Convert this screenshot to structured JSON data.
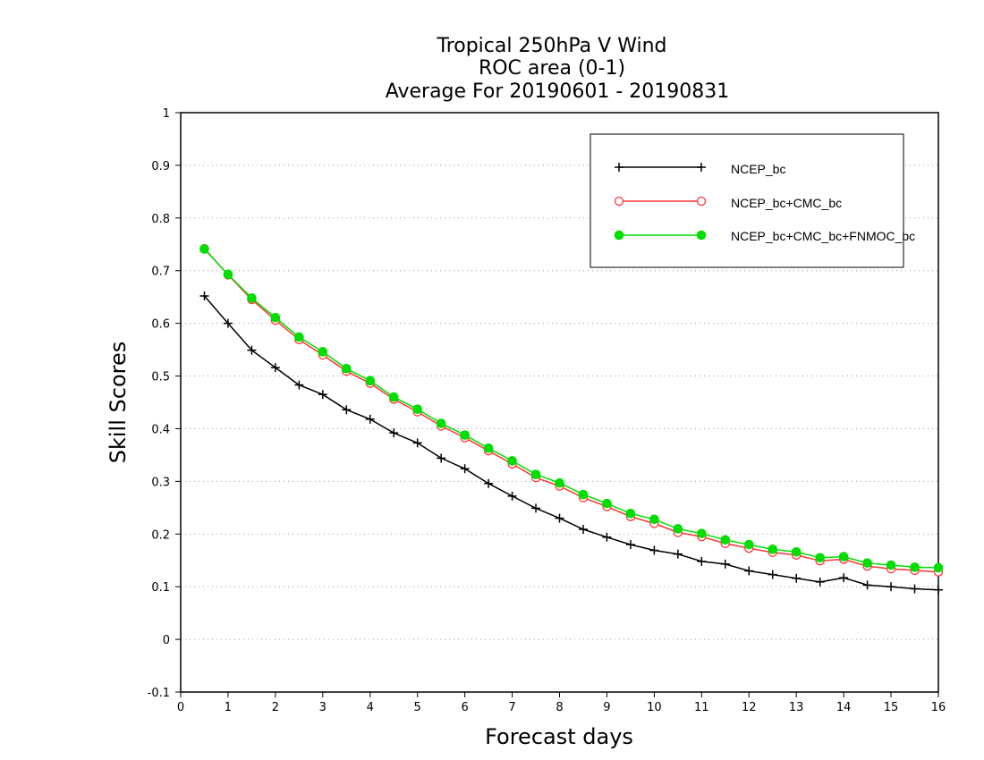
{
  "chart_data": {
    "type": "line",
    "title_lines": [
      "Tropical 250hPa V Wind",
      "ROC area (0-1)",
      "Average For 20190601 - 20190831"
    ],
    "xlabel": "Forecast days",
    "ylabel": "Skill Scores",
    "xlim": [
      0,
      16
    ],
    "ylim": [
      -0.1,
      1
    ],
    "xticks": [
      "0",
      "1",
      "2",
      "3",
      "4",
      "5",
      "6",
      "7",
      "8",
      "9",
      "10",
      "11",
      "12",
      "13",
      "14",
      "15",
      "16"
    ],
    "yticks": [
      "-0.1",
      "0",
      "0.1",
      "0.2",
      "0.3",
      "0.4",
      "0.5",
      "0.6",
      "0.7",
      "0.8",
      "0.9",
      "1"
    ],
    "grid": "horizontal dotted",
    "legend_position": "top-right",
    "x": [
      0.5,
      1,
      1.5,
      2,
      2.5,
      3,
      3.5,
      4,
      4.5,
      5,
      5.5,
      6,
      6.5,
      7,
      7.5,
      8,
      8.5,
      9,
      9.5,
      10,
      10.5,
      11,
      11.5,
      12,
      12.5,
      13,
      13.5,
      14,
      14.5,
      15,
      15.5,
      16
    ],
    "series": [
      {
        "name": "NCEP_bc",
        "color": "#000000",
        "marker": "plus",
        "values": [
          0.652,
          0.6,
          0.549,
          0.516,
          0.483,
          0.465,
          0.436,
          0.418,
          0.392,
          0.373,
          0.344,
          0.324,
          0.296,
          0.272,
          0.249,
          0.23,
          0.209,
          0.194,
          0.18,
          0.169,
          0.162,
          0.148,
          0.143,
          0.13,
          0.123,
          0.116,
          0.109,
          0.117,
          0.103,
          0.1,
          0.096,
          0.094
        ]
      },
      {
        "name": "NCEP_bc+CMC_bc",
        "color": "#ff3333",
        "marker": "open-circle",
        "values": [
          0.742,
          0.692,
          0.645,
          0.606,
          0.569,
          0.54,
          0.509,
          0.486,
          0.456,
          0.432,
          0.405,
          0.383,
          0.358,
          0.333,
          0.307,
          0.291,
          0.269,
          0.252,
          0.233,
          0.22,
          0.203,
          0.195,
          0.182,
          0.173,
          0.165,
          0.16,
          0.149,
          0.152,
          0.139,
          0.134,
          0.131,
          0.128
        ]
      },
      {
        "name": "NCEP_bc+CMC_bc+FNMOC_bc",
        "color": "#00dd00",
        "marker": "filled-circle",
        "values": [
          0.741,
          0.693,
          0.648,
          0.611,
          0.574,
          0.546,
          0.514,
          0.491,
          0.46,
          0.437,
          0.41,
          0.388,
          0.363,
          0.339,
          0.313,
          0.297,
          0.275,
          0.258,
          0.239,
          0.228,
          0.21,
          0.201,
          0.189,
          0.18,
          0.171,
          0.166,
          0.155,
          0.157,
          0.145,
          0.141,
          0.137,
          0.136
        ]
      }
    ]
  }
}
